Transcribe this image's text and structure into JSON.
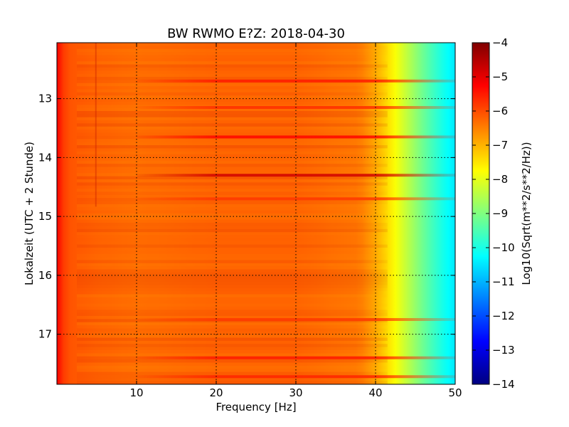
{
  "chart_data": {
    "type": "heatmap",
    "title": "BW RWMO E?Z: 2018-04-30",
    "xlabel": "Frequency [Hz]",
    "ylabel": "Lokalzeit (UTC + 2 Stunde)",
    "colorbar_label": "Log10(Sqrt(m**2/s**2/Hz))",
    "colormap": "jet",
    "xlim": [
      0,
      50
    ],
    "ylim": [
      17.85,
      12.05
    ],
    "clim": [
      -14,
      -4
    ],
    "grid": true,
    "x_ticks": [
      "10",
      "20",
      "30",
      "40",
      "50"
    ],
    "x_tick_values": [
      10,
      20,
      30,
      40,
      50
    ],
    "y_ticks": [
      "13",
      "14",
      "15",
      "16",
      "17"
    ],
    "y_tick_values": [
      13,
      14,
      15,
      16,
      17
    ],
    "colorbar_ticks": [
      "−4",
      "−5",
      "−6",
      "−7",
      "−8",
      "−9",
      "−10",
      "−11",
      "−12",
      "−13",
      "−14"
    ],
    "colorbar_tick_values": [
      -4,
      -5,
      -6,
      -7,
      -8,
      -9,
      -10,
      -11,
      -12,
      -13,
      -14
    ],
    "frequency_profile": {
      "frequency_hz": [
        0,
        0.5,
        1,
        2,
        5,
        10,
        20,
        30,
        38,
        40,
        42,
        44,
        46,
        48,
        50
      ],
      "log10_psd": [
        -5.2,
        -5.5,
        -6.0,
        -6.1,
        -6.2,
        -6.3,
        -6.2,
        -6.2,
        -6.4,
        -6.9,
        -7.6,
        -8.4,
        -9.2,
        -9.9,
        -10.5
      ]
    },
    "bright_bands": [
      {
        "time": 12.7,
        "log10_psd": -5.5
      },
      {
        "time": 13.15,
        "log10_psd": -5.7
      },
      {
        "time": 13.65,
        "log10_psd": -5.3
      },
      {
        "time": 14.3,
        "log10_psd": -4.8
      },
      {
        "time": 14.7,
        "log10_psd": -5.8
      },
      {
        "time": 16.75,
        "log10_psd": -5.8
      },
      {
        "time": 17.4,
        "log10_psd": -5.5
      },
      {
        "time": 17.72,
        "log10_psd": -5.6
      }
    ]
  }
}
